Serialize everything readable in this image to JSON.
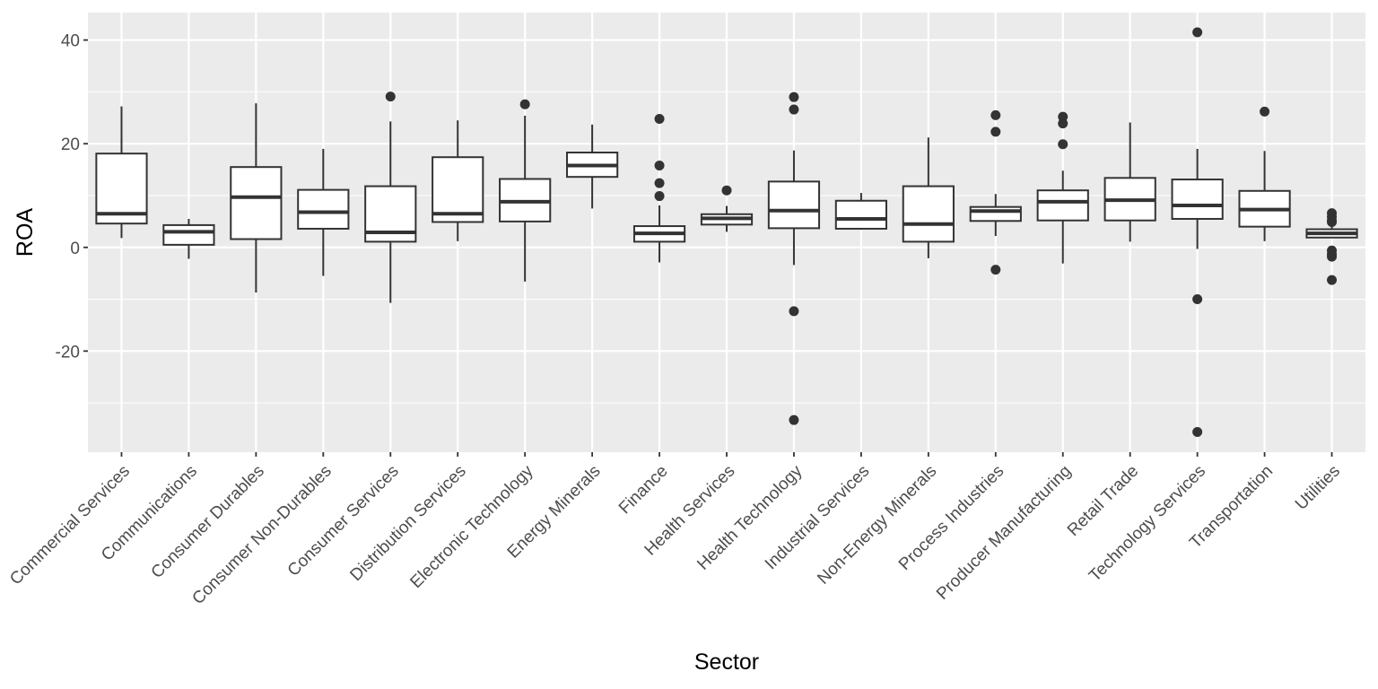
{
  "chart_data": {
    "type": "boxplot",
    "title": "",
    "xlabel": "Sector",
    "ylabel": "ROA",
    "ylim": [
      -39.5,
      45.3
    ],
    "y_ticks": [
      {
        "value": -20,
        "label": "-20"
      },
      {
        "value": 0,
        "label": "0"
      },
      {
        "value": 20,
        "label": "20"
      },
      {
        "value": 40,
        "label": "40"
      }
    ],
    "y_minor_ticks": [
      -30,
      -10,
      10,
      30
    ],
    "grid": true,
    "legend": "none",
    "colors": {
      "panel_background": "#ebebeb",
      "grid": "#ffffff",
      "box_fill": "#ffffff",
      "box_line": "#333333",
      "outlier": "#333333"
    },
    "categories": [
      "Commercial Services",
      "Communications",
      "Consumer Durables",
      "Consumer Non-Durables",
      "Consumer Services",
      "Distribution Services",
      "Electronic Technology",
      "Energy Minerals",
      "Finance",
      "Health Services",
      "Health Technology",
      "Industrial Services",
      "Non-Energy Minerals",
      "Process Industries",
      "Producer Manufacturing",
      "Retail Trade",
      "Technology Services",
      "Transportation",
      "Utilities"
    ],
    "boxes": [
      {
        "category": "Commercial Services",
        "lower_whisker": 1.8,
        "q1": 4.6,
        "median": 6.5,
        "q3": 18.1,
        "upper_whisker": 27.2,
        "outliers": []
      },
      {
        "category": "Communications",
        "lower_whisker": -2.2,
        "q1": 0.5,
        "median": 3.0,
        "q3": 4.3,
        "upper_whisker": 5.5,
        "outliers": []
      },
      {
        "category": "Consumer Durables",
        "lower_whisker": -8.7,
        "q1": 1.6,
        "median": 9.7,
        "q3": 15.5,
        "upper_whisker": 27.8,
        "outliers": []
      },
      {
        "category": "Consumer Non-Durables",
        "lower_whisker": -5.5,
        "q1": 3.6,
        "median": 6.8,
        "q3": 11.1,
        "upper_whisker": 19.0,
        "outliers": []
      },
      {
        "category": "Consumer Services",
        "lower_whisker": -10.7,
        "q1": 1.1,
        "median": 2.9,
        "q3": 11.8,
        "upper_whisker": 24.3,
        "outliers": [
          29.1
        ]
      },
      {
        "category": "Distribution Services",
        "lower_whisker": 1.2,
        "q1": 4.9,
        "median": 6.5,
        "q3": 17.4,
        "upper_whisker": 24.5,
        "outliers": []
      },
      {
        "category": "Electronic Technology",
        "lower_whisker": -6.6,
        "q1": 5.0,
        "median": 8.8,
        "q3": 13.2,
        "upper_whisker": 25.4,
        "outliers": [
          27.6
        ]
      },
      {
        "category": "Energy Minerals",
        "lower_whisker": 7.5,
        "q1": 13.6,
        "median": 15.8,
        "q3": 18.3,
        "upper_whisker": 23.7,
        "outliers": []
      },
      {
        "category": "Finance",
        "lower_whisker": -2.9,
        "q1": 1.1,
        "median": 2.7,
        "q3": 4.1,
        "upper_whisker": 8.1,
        "outliers": [
          9.9,
          12.4,
          15.8,
          24.8
        ]
      },
      {
        "category": "Health Services",
        "lower_whisker": 3.0,
        "q1": 4.4,
        "median": 5.6,
        "q3": 6.4,
        "upper_whisker": 8.0,
        "outliers": [
          11.0
        ]
      },
      {
        "category": "Health Technology",
        "lower_whisker": -3.4,
        "q1": 3.7,
        "median": 7.1,
        "q3": 12.7,
        "upper_whisker": 18.7,
        "outliers": [
          26.6,
          29.0,
          -12.3,
          -33.3
        ]
      },
      {
        "category": "Industrial Services",
        "lower_whisker": 3.4,
        "q1": 3.6,
        "median": 5.5,
        "q3": 9.0,
        "upper_whisker": 10.5,
        "outliers": []
      },
      {
        "category": "Non-Energy Minerals",
        "lower_whisker": -2.1,
        "q1": 1.1,
        "median": 4.5,
        "q3": 11.8,
        "upper_whisker": 21.2,
        "outliers": []
      },
      {
        "category": "Process Industries",
        "lower_whisker": 2.2,
        "q1": 5.1,
        "median": 7.0,
        "q3": 7.8,
        "upper_whisker": 10.3,
        "outliers": [
          25.5,
          22.3,
          -4.3
        ]
      },
      {
        "category": "Producer Manufacturing",
        "lower_whisker": -3.1,
        "q1": 5.2,
        "median": 8.8,
        "q3": 11.0,
        "upper_whisker": 14.8,
        "outliers": [
          25.2,
          23.9,
          19.9
        ]
      },
      {
        "category": "Retail Trade",
        "lower_whisker": 1.1,
        "q1": 5.2,
        "median": 9.1,
        "q3": 13.4,
        "upper_whisker": 24.1,
        "outliers": []
      },
      {
        "category": "Technology Services",
        "lower_whisker": -0.3,
        "q1": 5.5,
        "median": 8.1,
        "q3": 13.1,
        "upper_whisker": 19.0,
        "outliers": [
          41.5,
          -10.0,
          -35.6
        ]
      },
      {
        "category": "Transportation",
        "lower_whisker": 1.2,
        "q1": 4.0,
        "median": 7.3,
        "q3": 10.9,
        "upper_whisker": 18.6,
        "outliers": [
          26.2
        ]
      },
      {
        "category": "Utilities",
        "lower_whisker": 1.9,
        "q1": 1.9,
        "median": 2.7,
        "q3": 3.5,
        "upper_whisker": 4.3,
        "outliers": [
          6.6,
          5.9,
          5.2,
          4.9,
          -0.6,
          -1.3,
          -1.8,
          -6.3
        ]
      }
    ]
  }
}
